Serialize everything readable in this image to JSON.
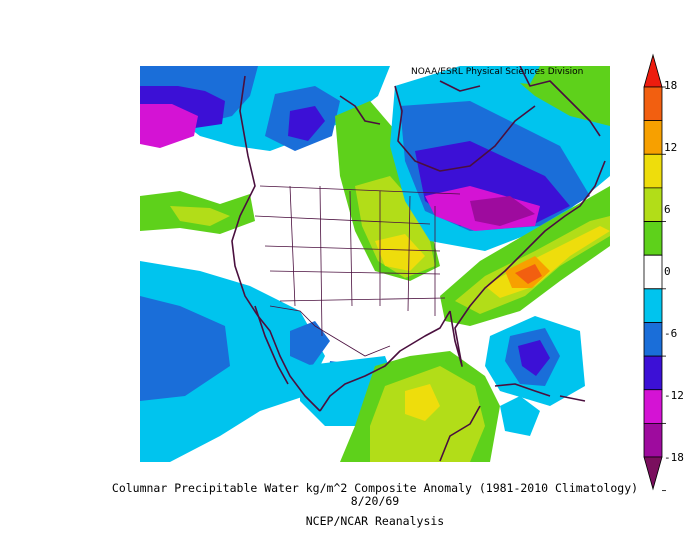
{
  "map": {
    "credit": "NOAA/ESRL Physical Sciences Division"
  },
  "colorbar": {
    "ticks": [
      "18",
      "12",
      "6",
      "0",
      "-6",
      "-12",
      "-18"
    ],
    "bins": [
      {
        "range": "<-18",
        "color": "#7a0f5e"
      },
      {
        "range": "-18 to -15",
        "color": "#9e0b9e"
      },
      {
        "range": "-15 to -12",
        "color": "#d413d4"
      },
      {
        "range": "-12 to -9",
        "color": "#3c10d6"
      },
      {
        "range": "-9 to -6",
        "color": "#1a6ed9"
      },
      {
        "range": "-6 to -3",
        "color": "#00c4ee"
      },
      {
        "range": "-3 to 3",
        "color": "#ffffff"
      },
      {
        "range": "3 to 6",
        "color": "#5ed11b"
      },
      {
        "range": "6 to 9",
        "color": "#b2dd18"
      },
      {
        "range": "9 to 12",
        "color": "#eedd0c"
      },
      {
        "range": "12 to 15",
        "color": "#f7a000"
      },
      {
        "range": "15 to 18",
        "color": "#f25f10"
      },
      {
        "range": ">18",
        "color": "#ed1c0e"
      }
    ]
  },
  "caption": {
    "line1": "Columnar Precipitable Water kg/m^2 Composite Anomaly (1981-2010 Climatology)",
    "line2": "8/20/69",
    "line3": "NCEP/NCAR Reanalysis"
  }
}
